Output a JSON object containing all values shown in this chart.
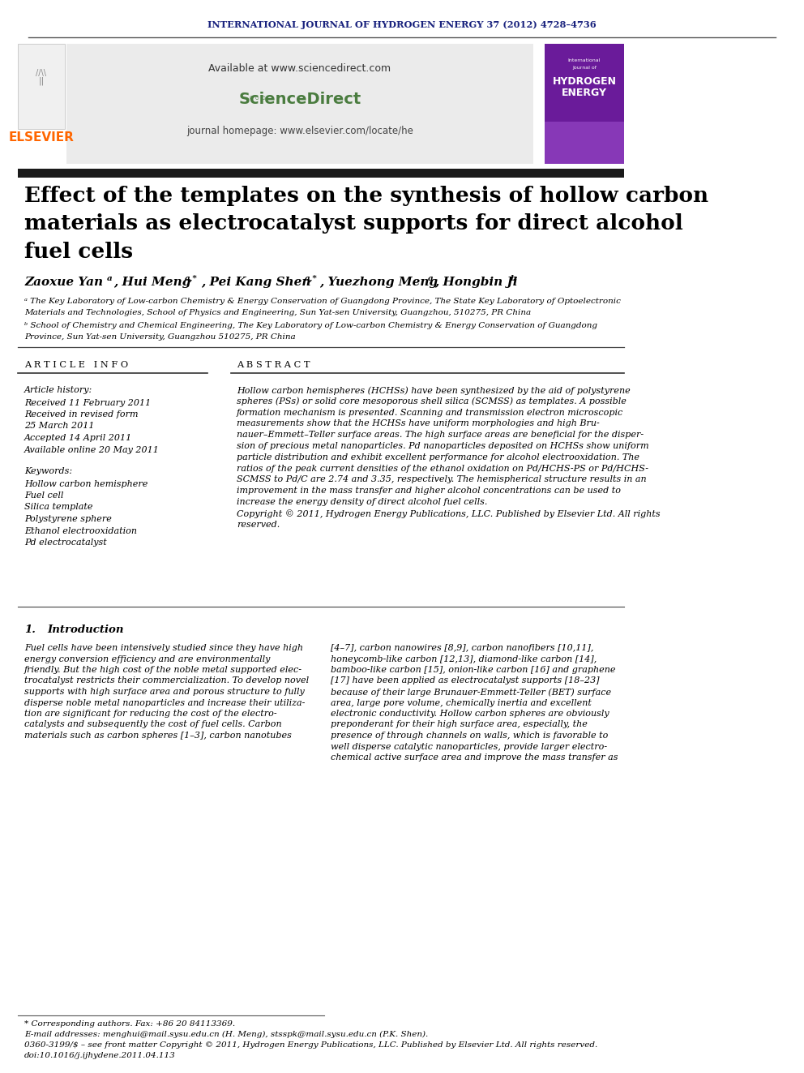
{
  "journal_header": "INTERNATIONAL JOURNAL OF HYDROGEN ENERGY 37 (2012) 4728–4736",
  "journal_header_color": "#1a237e",
  "available_text": "Available at www.sciencedirect.com",
  "journal_homepage": "journal homepage: www.elsevier.com/locate/he",
  "elsevier_color": "#FF6600",
  "elsevier_text": "ELSEVIER",
  "article_info_header": "A R T I C L E   I N F O",
  "abstract_header": "A B S T R A C T",
  "article_history_label": "Article history:",
  "received1": "Received 11 February 2011",
  "received2": "Received in revised form",
  "received2b": "25 March 2011",
  "accepted": "Accepted 14 April 2011",
  "available_online": "Available online 20 May 2011",
  "keywords_label": "Keywords:",
  "keyword1": "Hollow carbon hemisphere",
  "keyword2": "Fuel cell",
  "keyword3": "Silica template",
  "keyword4": "Polystyrene sphere",
  "keyword5": "Ethanol electrooxidation",
  "keyword6": "Pd electrocatalyst",
  "abs_lines": [
    "Hollow carbon hemispheres (HCHSs) have been synthesized by the aid of polystyrene",
    "spheres (PSs) or solid core mesoporous shell silica (SCMSS) as templates. A possible",
    "formation mechanism is presented. Scanning and transmission electron microscopic",
    "measurements show that the HCHSs have uniform morphologies and high Bru-",
    "nauer–Emmett–Teller surface areas. The high surface areas are beneficial for the disper-",
    "sion of precious metal nanoparticles. Pd nanoparticles deposited on HCHSs show uniform",
    "particle distribution and exhibit excellent performance for alcohol electrooxidation. The",
    "ratios of the peak current densities of the ethanol oxidation on Pd/HCHS-PS or Pd/HCHS-",
    "SCMSS to Pd/C are 2.74 and 3.35, respectively. The hemispherical structure results in an",
    "improvement in the mass transfer and higher alcohol concentrations can be used to",
    "increase the energy density of direct alcohol fuel cells.",
    "Copyright © 2011, Hydrogen Energy Publications, LLC. Published by Elsevier Ltd. All rights",
    "reserved."
  ],
  "left_intro_lines": [
    "Fuel cells have been intensively studied since they have high",
    "energy conversion efficiency and are environmentally",
    "friendly. But the high cost of the noble metal supported elec-",
    "trocatalyst restricts their commercialization. To develop novel",
    "supports with high surface area and porous structure to fully",
    "disperse noble metal nanoparticles and increase their utiliza-",
    "tion are significant for reducing the cost of the electro-",
    "catalysts and subsequently the cost of fuel cells. Carbon",
    "materials such as carbon spheres [1–3], carbon nanotubes"
  ],
  "right_intro_lines": [
    "[4–7], carbon nanowires [8,9], carbon nanofibers [10,11],",
    "honeycomb-like carbon [12,13], diamond-like carbon [14],",
    "bamboo-like carbon [15], onion-like carbon [16] and graphene",
    "[17] have been applied as electrocatalyst supports [18–23]",
    "because of their large Brunauer-Emmett-Teller (BET) surface",
    "area, large pore volume, chemically inertia and excellent",
    "electronic conductivity. Hollow carbon spheres are obviously",
    "preponderant for their high surface area, especially, the",
    "presence of through channels on walls, which is favorable to",
    "well disperse catalytic nanoparticles, provide larger electro-",
    "chemical active surface area and improve the mass transfer as"
  ],
  "footnote_star": "* Corresponding authors. Fax: +86 20 84113369.",
  "footnote_email": "E-mail addresses: menghui@mail.sysu.edu.cn (H. Meng), stsspk@mail.sysu.edu.cn (P.K. Shen).",
  "footnote_issn": "0360-3199/$ – see front matter Copyright © 2011, Hydrogen Energy Publications, LLC. Published by Elsevier Ltd. All rights reserved.",
  "footnote_doi": "doi:10.1016/j.ijhydene.2011.04.113",
  "bg_color": "#ffffff",
  "title_bar_color": "#1a1a1a",
  "text_color": "#000000"
}
